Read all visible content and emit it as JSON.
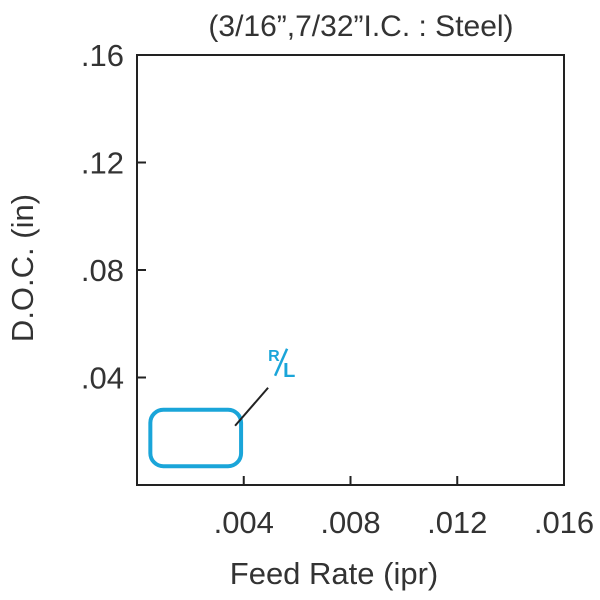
{
  "chart_data": {
    "type": "area",
    "title": "(3/16”,7/32”I.C. : Steel)",
    "xlabel": "Feed Rate (ipr)",
    "ylabel": "D.O.C. (in)",
    "xlim": [
      0,
      0.016
    ],
    "ylim": [
      0,
      0.16
    ],
    "x_ticks": [
      0.004,
      0.008,
      0.012,
      0.016
    ],
    "x_tick_labels": [
      ".004",
      ".008",
      ".012",
      ".016"
    ],
    "y_ticks": [
      0.04,
      0.08,
      0.12,
      0.16
    ],
    "y_tick_labels": [
      ".04",
      ".08",
      ".12",
      ".16"
    ],
    "grid": false,
    "regions": [
      {
        "label_top": "R",
        "label_bottom": "L",
        "color": "#1aa5d9",
        "x_range": [
          0.0005,
          0.0039
        ],
        "y_range": [
          0.007,
          0.028
        ]
      }
    ]
  }
}
